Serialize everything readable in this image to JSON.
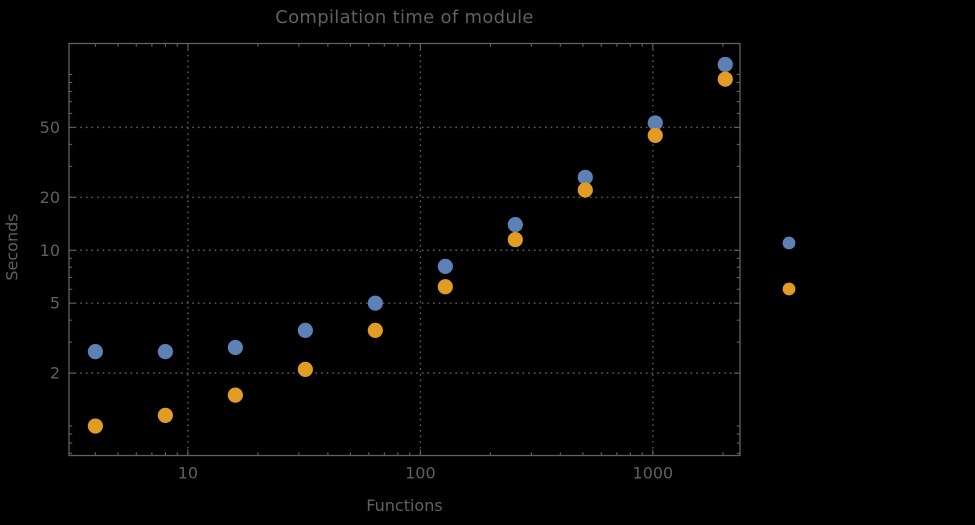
{
  "title": {
    "text": "Compilation time of module"
  },
  "axes": {
    "x_label": "Functions",
    "y_label": "Seconds"
  },
  "colors": {
    "background": "#000000",
    "frame": "#616161",
    "grid": "#5a5a5a",
    "text": "#606060",
    "series_blue": "#5e81b5",
    "series_orange": "#e19c24"
  },
  "chart_data": {
    "type": "scatter",
    "title": "Compilation time of module",
    "xlabel": "Functions",
    "ylabel": "Seconds",
    "x_scale": "log",
    "y_scale": "log",
    "xlim": [
      3.08,
      2370
    ],
    "ylim": [
      0.68,
      150
    ],
    "grid": "dotted gridlines at labeled major ticks only",
    "legend_position": "outside-right, unlabeled color markers",
    "x": [
      4,
      8,
      16,
      32,
      64,
      128,
      256,
      512,
      1024,
      2048
    ],
    "series": [
      {
        "name": "blue",
        "color": "#5e81b5",
        "values": [
          2.65,
          2.65,
          2.8,
          3.5,
          5.0,
          8.1,
          14,
          26,
          53,
          114
        ]
      },
      {
        "name": "orange",
        "color": "#e19c24",
        "values": [
          1.0,
          1.15,
          1.5,
          2.1,
          3.5,
          6.2,
          11.5,
          22,
          45,
          94
        ]
      }
    ],
    "x_ticks": {
      "major": [
        {
          "value": 10,
          "label": "10"
        },
        {
          "value": 100,
          "label": "100"
        },
        {
          "value": 1000,
          "label": "1000"
        }
      ],
      "minor": [
        4,
        5,
        6,
        7,
        8,
        9,
        20,
        30,
        40,
        50,
        60,
        70,
        80,
        90,
        200,
        300,
        400,
        500,
        600,
        700,
        800,
        900,
        2000
      ]
    },
    "y_ticks": {
      "major": [
        {
          "value": 2,
          "label": "2"
        },
        {
          "value": 5,
          "label": "5"
        },
        {
          "value": 10,
          "label": "10"
        },
        {
          "value": 20,
          "label": "20"
        },
        {
          "value": 50,
          "label": "50"
        }
      ],
      "minor": [
        0.7,
        0.8,
        0.9,
        1,
        3,
        4,
        6,
        7,
        8,
        9,
        30,
        40,
        60,
        70,
        80,
        90,
        100
      ]
    }
  },
  "legend": {
    "markers": [
      {
        "series": "blue",
        "color": "#5e81b5"
      },
      {
        "series": "orange",
        "color": "#e19c24"
      }
    ]
  }
}
